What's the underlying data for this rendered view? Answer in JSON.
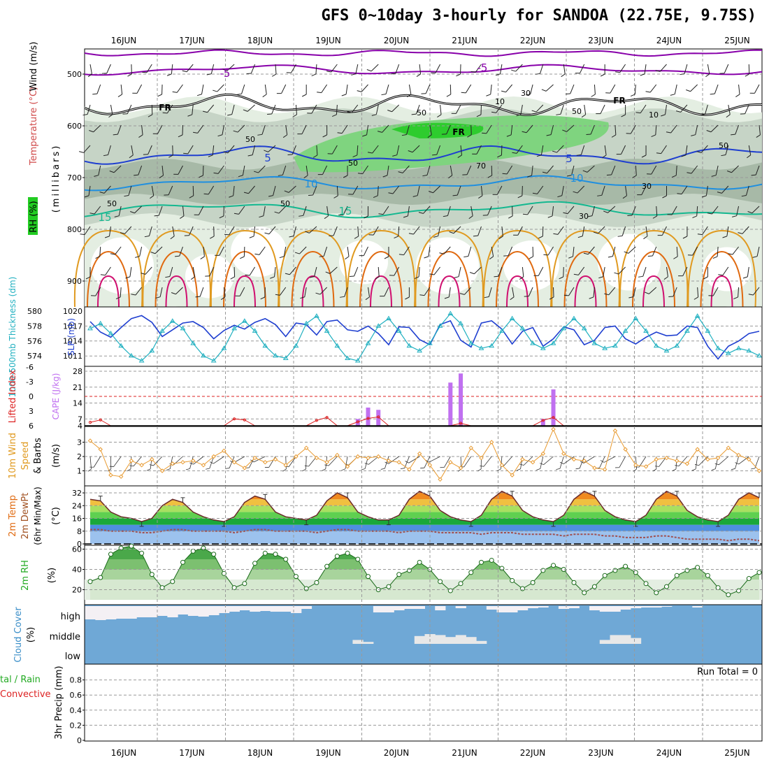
{
  "title": "GFS 0~10day 3-hourly for SANDOA (22.75E, 9.75S)",
  "days": [
    "16JUN",
    "17JUN",
    "18JUN",
    "19JUN",
    "20JUN",
    "21JUN",
    "22JUN",
    "23JUN",
    "24JUN",
    "25JUN"
  ],
  "colors": {
    "purple": "#8800aa",
    "darkblue": "#1f3fd0",
    "blue": "#1f8fe0",
    "teal": "#14b890",
    "orange": "#e09a20",
    "darkorange": "#e06a10",
    "magenta": "#d01070",
    "cyan": "#20b0c0",
    "lifted": "#dd2222",
    "cape": "#c070f0",
    "wind10m": "#e89a30",
    "cloud": "#6fa8d6",
    "rh_green": "#3a9a3a"
  },
  "panel_labels": {
    "upper_wind": "Wind (m/s)",
    "upper_temp": "Temperature (°C)",
    "upper_rh": "RH (%)",
    "upper_mb": "(millibars)",
    "thickness": "1000-500mb Thickness (dm)",
    "slp": "SLP (mb)",
    "lifted": "Lifted Index",
    "cape": "CAPE (J/kg)",
    "wind10m_a": "10m Wind",
    "wind10m_b": "Speed",
    "wind10m_c": "& Barbs",
    "wind10m_unit": "(m/s)",
    "temp_a": "2m Temp",
    "temp_b": "2m DewPt",
    "temp_c": "(6hr Min/Max)",
    "temp_unit": "(°C)",
    "rh2m": "2m RH",
    "rh2m_unit": "(%)",
    "cloud_a": "Cloud Cover",
    "cloud_unit": "(%)",
    "precip_a": "tal / Rain",
    "precip_b": "Convective",
    "precip_c": "3hr Precip (mm)"
  },
  "upper_air": {
    "pressure_ticks": [
      "500",
      "600",
      "700",
      "800",
      "900"
    ],
    "contour_labels": [
      {
        "text": "-5",
        "color": "purple"
      },
      {
        "text": "-5",
        "color": "purple"
      },
      {
        "text": "FR",
        "color": "black"
      },
      {
        "text": "FR",
        "color": "black"
      },
      {
        "text": "FR",
        "color": "black"
      },
      {
        "text": "5",
        "color": "darkblue"
      },
      {
        "text": "5",
        "color": "darkblue"
      },
      {
        "text": "10",
        "color": "blue"
      },
      {
        "text": "10",
        "color": "blue"
      },
      {
        "text": "15",
        "color": "teal"
      },
      {
        "text": "15",
        "color": "teal"
      }
    ],
    "rh_labels": [
      "50",
      "50",
      "50",
      "50",
      "30",
      "30",
      "10",
      "10",
      "50",
      "50",
      "50",
      "30",
      "70"
    ]
  },
  "thickness_slp": {
    "thickness_ticks": [
      "574",
      "576",
      "578",
      "580"
    ],
    "slp_ticks": [
      "1011",
      "1014",
      "1017",
      "1020"
    ]
  },
  "stability": {
    "lifted_ticks": [
      "-6",
      "-3",
      "0",
      "3",
      "6"
    ],
    "cape_ticks": [
      "4",
      "7",
      "14",
      "21",
      "28"
    ]
  },
  "wind10m": {
    "ticks": [
      "1",
      "2",
      "3"
    ]
  },
  "temp2m": {
    "ticks": [
      "0",
      "8",
      "16",
      "24",
      "32"
    ]
  },
  "rh2m": {
    "ticks": [
      "20",
      "40",
      "60"
    ]
  },
  "cloud": {
    "levels": [
      "high",
      "middle",
      "low"
    ]
  },
  "precip": {
    "ticks": [
      "0",
      "0.2",
      "0.4",
      "0.6",
      "0.8"
    ],
    "run_total": "Run Total = 0"
  },
  "chart_data": [
    {
      "type": "line",
      "title": "1000-500mb Thickness (dm) / SLP (mb)",
      "series": [
        {
          "name": "1000-500mb Thickness (dm)",
          "values": [
            578.6,
            577.2,
            576.5,
            577.8,
            579.0,
            579.4,
            578.5,
            576.6,
            577.5,
            578.4,
            578.6,
            577.8,
            576.3,
            577.4,
            578.1,
            577.6,
            578.5,
            579.0,
            578.2,
            576.6,
            578.4,
            578.2,
            576.8,
            578.6,
            578.8,
            577.5,
            577.3,
            578.0,
            577.0,
            575.5,
            577.9,
            577.8,
            576.2,
            575.5,
            578.2,
            578.7,
            576.1,
            575.2,
            578.4,
            578.7,
            577.6,
            575.6,
            577.3,
            577.8,
            575.3,
            576.3,
            577.9,
            577.5,
            575.5,
            576.1,
            577.8,
            578.0,
            576.3,
            575.6,
            576.5,
            577.2,
            576.7,
            576.8,
            578.0,
            577.8,
            575.3,
            573.6,
            575.3,
            576.0,
            577.0,
            577.3
          ]
        },
        {
          "name": "SLP (mb)",
          "values": [
            1016.5,
            1017.5,
            1015.5,
            1013.0,
            1011.0,
            1010.0,
            1012.0,
            1016.0,
            1018.0,
            1016.5,
            1013.5,
            1011.0,
            1010.0,
            1012.5,
            1016.5,
            1018.0,
            1016.0,
            1013.0,
            1011.0,
            1010.5,
            1013.0,
            1017.5,
            1019.0,
            1016.0,
            1013.0,
            1010.5,
            1010.0,
            1013.5,
            1017.0,
            1018.5,
            1016.0,
            1013.0,
            1012.0,
            1013.5,
            1017.0,
            1019.5,
            1017.5,
            1013.5,
            1012.5,
            1013.0,
            1016.0,
            1018.5,
            1016.5,
            1013.5,
            1012.5,
            1013.5,
            1016.5,
            1018.5,
            1016.5,
            1013.5,
            1012.5,
            1013.0,
            1016.0,
            1018.5,
            1016.0,
            1013.0,
            1012.0,
            1013.0,
            1016.0,
            1019.0,
            1016.0,
            1012.5,
            1011.5,
            1012.5,
            1012.0,
            1011.0
          ]
        }
      ]
    },
    {
      "type": "bar",
      "title": "CAPE (J/kg) / Lifted Index",
      "series": [
        {
          "name": "CAPE (J/kg)",
          "values": [
            0,
            0,
            0,
            0,
            0,
            0,
            0,
            0,
            0,
            0,
            0,
            0,
            0,
            0,
            0,
            0,
            0,
            0,
            0,
            0,
            0,
            0,
            0,
            0,
            0,
            0,
            7,
            12,
            11,
            0,
            0,
            0,
            0,
            0,
            0,
            23,
            27,
            0,
            0,
            0,
            0,
            0,
            0,
            0,
            7,
            20,
            0,
            0,
            0,
            0,
            0,
            0,
            0,
            0,
            0,
            0,
            0,
            0,
            0,
            0,
            0,
            0,
            0,
            0,
            0,
            0
          ]
        },
        {
          "name": "Lifted Index",
          "values": [
            5.3,
            4.8,
            6,
            6,
            6,
            6,
            6,
            6,
            6,
            6,
            6,
            6,
            6,
            6,
            4.6,
            4.8,
            6,
            6,
            6,
            6,
            6,
            6,
            4.9,
            4.3,
            6,
            6,
            5.2,
            4.5,
            4.2,
            6,
            6,
            6,
            6,
            6,
            6,
            6,
            5.5,
            6,
            6,
            6,
            6,
            6,
            6,
            6,
            4.9,
            4.3,
            6,
            6,
            6,
            6,
            6,
            6,
            6,
            6,
            6,
            6,
            6,
            6,
            6,
            6,
            6,
            6,
            6,
            6,
            6,
            6
          ]
        }
      ]
    },
    {
      "type": "line",
      "title": "10m Wind Speed (m/s)",
      "series": [
        {
          "name": "10m Wind Speed",
          "values": [
            3.1,
            2.5,
            0.7,
            0.6,
            1.7,
            1.4,
            1.8,
            1.0,
            1.5,
            1.6,
            1.7,
            1.4,
            2.0,
            2.4,
            1.6,
            1.2,
            1.9,
            1.6,
            1.8,
            1.4,
            2.0,
            2.6,
            1.9,
            1.6,
            2.1,
            1.3,
            2.0,
            1.9,
            2.0,
            1.7,
            1.6,
            1.1,
            2.2,
            1.4,
            0.4,
            1.6,
            1.2,
            2.6,
            1.9,
            3.0,
            1.4,
            0.7,
            1.8,
            1.6,
            2.2,
            3.9,
            2.2,
            1.8,
            1.7,
            1.2,
            1.1,
            3.8,
            2.5,
            1.4,
            1.3,
            1.8,
            1.9,
            1.7,
            1.5,
            2.5,
            1.8,
            1.9,
            2.6,
            2.1,
            1.8,
            1.0
          ]
        }
      ]
    },
    {
      "type": "area",
      "title": "2m Temp / 2m DewPt (°C)",
      "series": [
        {
          "name": "2m Temp",
          "values": [
            28,
            27,
            20,
            17,
            16,
            14,
            16,
            24,
            28,
            26,
            20,
            17,
            15,
            14,
            17,
            26,
            30,
            28,
            20,
            17,
            16,
            15,
            18,
            27,
            32,
            29,
            20,
            17,
            15,
            15,
            18,
            28,
            33,
            30,
            21,
            17,
            15,
            14,
            18,
            28,
            33,
            30,
            21,
            17,
            15,
            14,
            18,
            28,
            33,
            30,
            21,
            17,
            15,
            14,
            18,
            28,
            33,
            30,
            21,
            17,
            15,
            14,
            18,
            28,
            32,
            29
          ]
        },
        {
          "name": "2m DewPt",
          "values": [
            9,
            9,
            8,
            8,
            8,
            7,
            7,
            8,
            9,
            9,
            8,
            8,
            8,
            8,
            7,
            8,
            9,
            9,
            8,
            8,
            8,
            8,
            7,
            8,
            9,
            9,
            8,
            8,
            8,
            8,
            7,
            8,
            8,
            8,
            7,
            7,
            7,
            7,
            6,
            7,
            7,
            7,
            6,
            6,
            6,
            6,
            5,
            6,
            6,
            6,
            5,
            5,
            4,
            4,
            4,
            5,
            5,
            4,
            3,
            3,
            3,
            3,
            2,
            3,
            3,
            2
          ]
        }
      ]
    },
    {
      "type": "area",
      "title": "2m RH (%)",
      "series": [
        {
          "name": "2m RH",
          "values": [
            28,
            32,
            55,
            61,
            63,
            56,
            35,
            22,
            28,
            47,
            58,
            61,
            55,
            36,
            22,
            26,
            46,
            56,
            55,
            50,
            33,
            21,
            27,
            43,
            53,
            56,
            50,
            33,
            20,
            23,
            35,
            39,
            47,
            40,
            28,
            19,
            26,
            37,
            47,
            49,
            41,
            29,
            21,
            27,
            39,
            44,
            40,
            27,
            17,
            23,
            34,
            39,
            43,
            37,
            26,
            17,
            23,
            34,
            39,
            42,
            34,
            22,
            15,
            19,
            31,
            37
          ]
        }
      ]
    },
    {
      "type": "bar",
      "title": "Cloud Cover (%)",
      "series": [
        {
          "name": "high",
          "values": [
            95,
            100,
            95,
            90,
            90,
            80,
            80,
            70,
            80,
            60,
            70,
            75,
            65,
            50,
            40,
            30,
            40,
            35,
            40,
            40,
            50,
            20,
            0,
            0,
            0,
            0,
            0,
            0,
            45,
            45,
            30,
            20,
            20,
            0,
            30,
            0,
            15,
            0,
            0,
            25,
            45,
            45,
            30,
            15,
            10,
            0,
            20,
            15,
            0,
            30,
            40,
            40,
            25,
            15,
            10,
            10,
            5,
            0,
            0,
            10,
            0,
            0,
            0,
            0,
            0,
            0
          ]
        },
        {
          "name": "middle",
          "values": [
            0,
            0,
            0,
            0,
            0,
            0,
            0,
            0,
            0,
            0,
            0,
            0,
            0,
            0,
            0,
            0,
            0,
            0,
            0,
            0,
            0,
            0,
            0,
            0,
            0,
            0,
            20,
            10,
            0,
            0,
            0,
            0,
            40,
            50,
            45,
            35,
            45,
            35,
            15,
            0,
            0,
            0,
            0,
            0,
            0,
            0,
            0,
            0,
            0,
            0,
            20,
            45,
            45,
            30,
            0,
            0,
            0,
            0,
            0,
            0,
            0,
            0,
            0,
            0,
            0,
            0
          ]
        },
        {
          "name": "low",
          "values": [
            0,
            0,
            0,
            0,
            0,
            0,
            0,
            0,
            0,
            0,
            0,
            0,
            0,
            0,
            0,
            0,
            0,
            0,
            0,
            0,
            0,
            0,
            0,
            0,
            0,
            0,
            0,
            0,
            0,
            0,
            0,
            0,
            0,
            0,
            0,
            0,
            0,
            0,
            0,
            0,
            0,
            0,
            0,
            0,
            0,
            0,
            0,
            0,
            0,
            0,
            0,
            0,
            0,
            0,
            0,
            0,
            0,
            0,
            0,
            0,
            0,
            0,
            0,
            0,
            0,
            0
          ]
        }
      ]
    },
    {
      "type": "bar",
      "title": "3hr Precip (mm)",
      "ylim": [
        0,
        1
      ],
      "series": [
        {
          "name": "3hr Precip",
          "values": [
            0,
            0,
            0,
            0,
            0,
            0,
            0,
            0,
            0,
            0,
            0,
            0,
            0,
            0,
            0,
            0,
            0,
            0,
            0,
            0,
            0,
            0,
            0,
            0,
            0,
            0,
            0,
            0,
            0,
            0,
            0,
            0,
            0,
            0,
            0,
            0,
            0,
            0,
            0,
            0,
            0,
            0,
            0,
            0,
            0,
            0,
            0,
            0,
            0,
            0,
            0,
            0,
            0,
            0,
            0,
            0,
            0,
            0,
            0,
            0,
            0,
            0,
            0,
            0,
            0,
            0
          ]
        }
      ]
    }
  ]
}
